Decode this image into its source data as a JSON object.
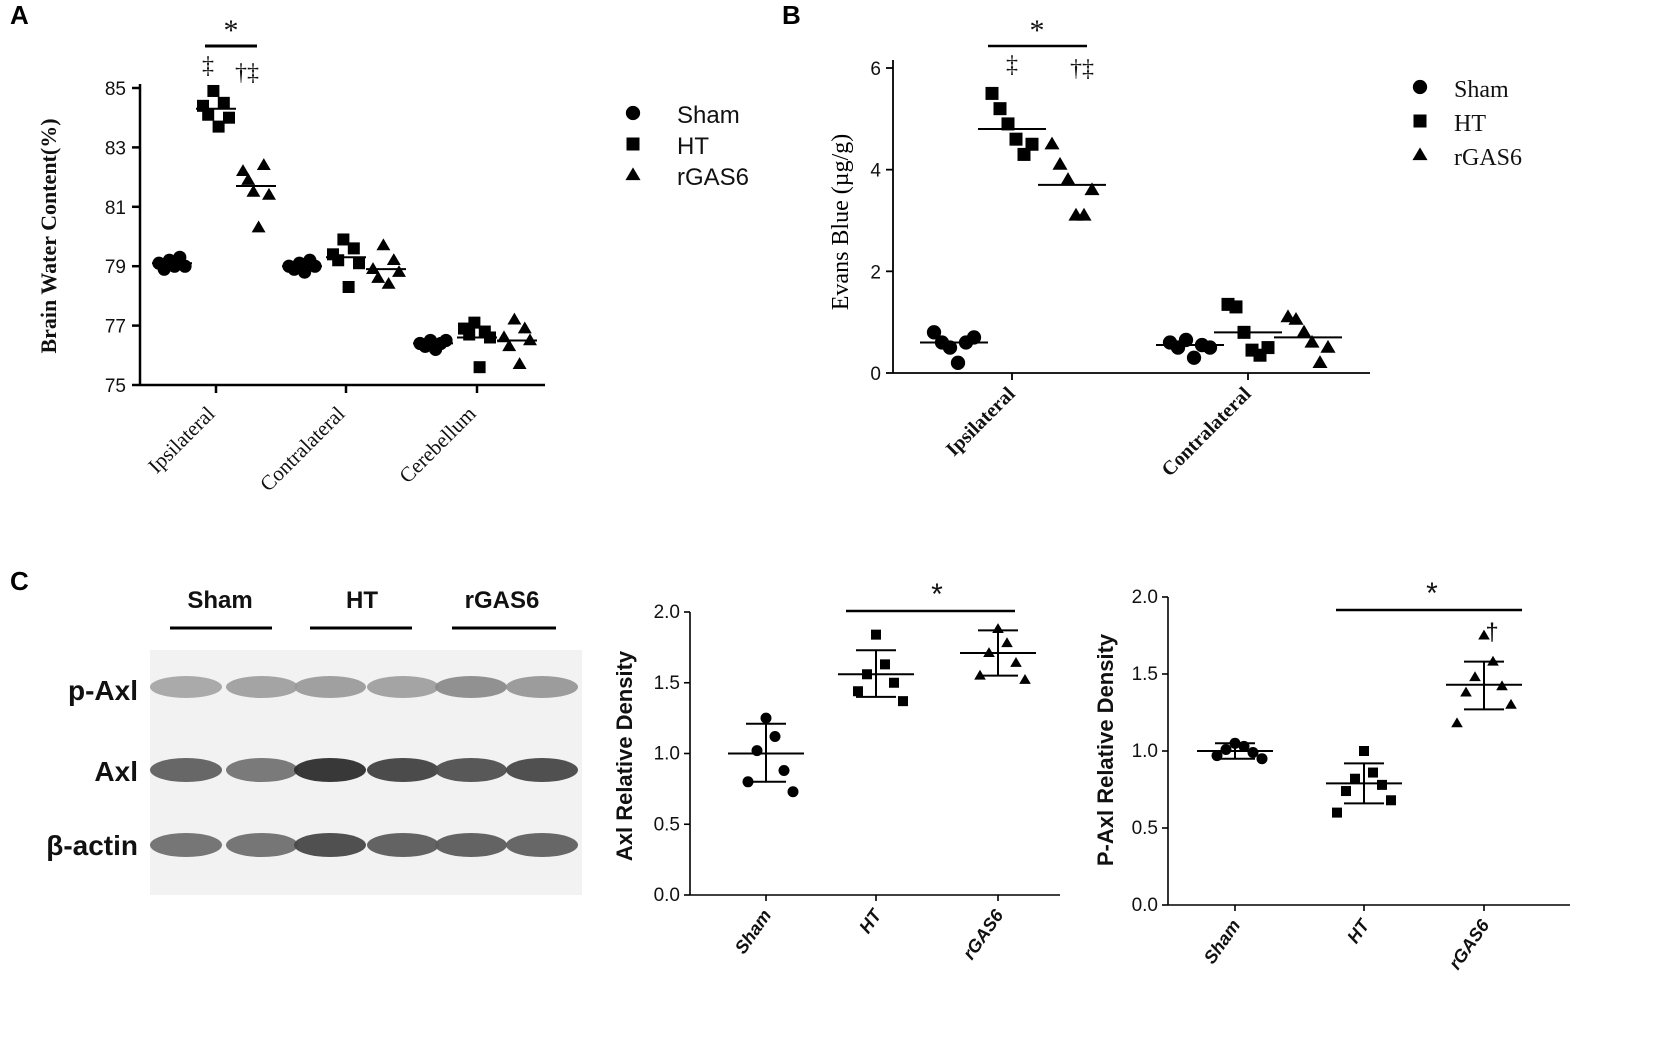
{
  "panels": {
    "a": {
      "letter": "A",
      "legend": [
        {
          "label": "Sham",
          "shape": "circle"
        },
        {
          "label": "HT",
          "shape": "square"
        },
        {
          "label": "rGAS6",
          "shape": "triangle"
        }
      ],
      "significance": {
        "star": "*",
        "ht_symbol": "‡",
        "rgas6_symbol": "†‡"
      }
    },
    "b": {
      "letter": "B",
      "legend": [
        {
          "label": "Sham",
          "shape": "circle"
        },
        {
          "label": "HT",
          "shape": "square"
        },
        {
          "label": "rGAS6",
          "shape": "triangle"
        }
      ],
      "significance": {
        "star": "*",
        "ht_symbol": "‡",
        "rgas6_symbol": "†‡"
      }
    },
    "c": {
      "letter": "C",
      "blot": {
        "groups": [
          "Sham",
          "HT",
          "rGAS6"
        ],
        "rows": [
          "p-Axl",
          "Axl",
          "β-actin"
        ],
        "band_intensity": {
          "p-Axl": [
            0.35,
            0.38,
            0.4,
            0.38,
            0.48,
            0.42
          ],
          "Axl": [
            0.7,
            0.6,
            0.95,
            0.85,
            0.78,
            0.82
          ],
          "β-actin": [
            0.62,
            0.62,
            0.82,
            0.72,
            0.72,
            0.7
          ]
        }
      },
      "axl_significance": {
        "star": "*"
      },
      "paxl_significance": {
        "star": "*",
        "rgas6_symbol": "†"
      }
    }
  },
  "chart_data": [
    {
      "type": "scatter",
      "title": "",
      "xlabel": "",
      "ylabel": "Brain Water Content(%)",
      "ylim": [
        75,
        85
      ],
      "yticks": [
        75,
        77,
        79,
        81,
        83,
        85
      ],
      "categories": [
        "Ipsilateral",
        "Contralateral",
        "Cerebellum"
      ],
      "grid": false,
      "legend_position": "top-right",
      "series": [
        {
          "name": "Sham",
          "values": [
            [
              79.1,
              78.9,
              79.2,
              79.0,
              79.3,
              79.0
            ],
            [
              79.0,
              78.9,
              79.1,
              78.8,
              79.2,
              79.0
            ],
            [
              76.4,
              76.3,
              76.5,
              76.2,
              76.4,
              76.5
            ]
          ],
          "means": [
            79.1,
            79.0,
            76.4
          ]
        },
        {
          "name": "HT",
          "values": [
            [
              84.4,
              84.1,
              84.9,
              83.7,
              84.5,
              84.0
            ],
            [
              79.4,
              79.2,
              79.9,
              78.3,
              79.6,
              79.1
            ],
            [
              76.9,
              76.7,
              77.1,
              75.6,
              76.8,
              76.6
            ]
          ],
          "means": [
            84.3,
            79.3,
            76.6
          ]
        },
        {
          "name": "rGAS6",
          "values": [
            [
              82.2,
              81.9,
              81.5,
              80.3,
              82.4,
              81.4
            ],
            [
              78.9,
              78.6,
              79.7,
              78.4,
              79.2,
              78.8
            ],
            [
              76.6,
              76.3,
              77.2,
              75.7,
              76.9,
              76.5
            ]
          ],
          "means": [
            81.7,
            78.9,
            76.5
          ]
        }
      ],
      "annotations": [
        {
          "between": [
            "HT",
            "rGAS6"
          ],
          "category": "Ipsilateral",
          "text": "*"
        }
      ]
    },
    {
      "type": "scatter",
      "title": "",
      "xlabel": "",
      "ylabel": "Evans Blue (µg/g)",
      "ylim": [
        0,
        6
      ],
      "yticks": [
        0,
        2,
        4,
        6
      ],
      "categories": [
        "Ipsilateral",
        "Contralateral"
      ],
      "grid": false,
      "legend_position": "top-right",
      "series": [
        {
          "name": "Sham",
          "values": [
            [
              0.8,
              0.6,
              0.5,
              0.2,
              0.6,
              0.7
            ],
            [
              0.6,
              0.5,
              0.65,
              0.3,
              0.55,
              0.5
            ]
          ],
          "means": [
            0.6,
            0.55
          ]
        },
        {
          "name": "HT",
          "values": [
            [
              5.5,
              5.2,
              4.9,
              4.6,
              4.3,
              4.5
            ],
            [
              1.35,
              1.3,
              0.8,
              0.45,
              0.35,
              0.5
            ]
          ],
          "means": [
            4.8,
            0.8
          ]
        },
        {
          "name": "rGAS6",
          "values": [
            [
              4.5,
              4.1,
              3.8,
              3.1,
              3.1,
              3.6
            ],
            [
              1.1,
              1.05,
              0.8,
              0.6,
              0.2,
              0.5
            ]
          ],
          "means": [
            3.7,
            0.7
          ]
        }
      ],
      "annotations": [
        {
          "between": [
            "HT",
            "rGAS6"
          ],
          "category": "Ipsilateral",
          "text": "*"
        }
      ]
    },
    {
      "type": "scatter",
      "title": "",
      "xlabel": "",
      "ylabel": "Axl Relative Density",
      "ylim": [
        0.0,
        2.0
      ],
      "yticks": [
        0.0,
        0.5,
        1.0,
        1.5,
        2.0
      ],
      "categories": [
        "Sham",
        "HT",
        "rGAS6"
      ],
      "grid": false,
      "groups": [
        {
          "name": "Sham",
          "values": [
            1.25,
            1.12,
            1.02,
            0.88,
            0.8,
            0.73
          ],
          "mean": 1.0,
          "sd_low": 0.8,
          "sd_high": 1.21
        },
        {
          "name": "HT",
          "values": [
            1.84,
            1.63,
            1.56,
            1.5,
            1.44,
            1.37
          ],
          "mean": 1.56,
          "sd_low": 1.4,
          "sd_high": 1.73
        },
        {
          "name": "rGAS6",
          "values": [
            1.88,
            1.78,
            1.71,
            1.64,
            1.55,
            1.52
          ],
          "mean": 1.71,
          "sd_low": 1.55,
          "sd_high": 1.87
        }
      ],
      "annotations": [
        {
          "between": [
            "HT",
            "rGAS6"
          ],
          "text": "*"
        }
      ]
    },
    {
      "type": "scatter",
      "title": "",
      "xlabel": "",
      "ylabel": "P-Axl Relative Density",
      "ylim": [
        0.0,
        2.0
      ],
      "yticks": [
        0.0,
        0.5,
        1.0,
        1.5,
        2.0
      ],
      "categories": [
        "Sham",
        "HT",
        "rGAS6"
      ],
      "grid": false,
      "groups": [
        {
          "name": "Sham",
          "values": [
            1.05,
            1.03,
            1.01,
            0.99,
            0.97,
            0.95
          ],
          "mean": 1.0,
          "sd_low": 0.95,
          "sd_high": 1.05
        },
        {
          "name": "HT",
          "values": [
            1.0,
            0.86,
            0.82,
            0.78,
            0.74,
            0.68,
            0.6
          ],
          "mean": 0.79,
          "sd_low": 0.66,
          "sd_high": 0.92
        },
        {
          "name": "rGAS6",
          "values": [
            1.75,
            1.58,
            1.48,
            1.42,
            1.38,
            1.3,
            1.18
          ],
          "mean": 1.43,
          "sd_low": 1.27,
          "sd_high": 1.58
        }
      ],
      "annotations": [
        {
          "between": [
            "HT",
            "rGAS6"
          ],
          "text": "*"
        },
        {
          "group": "rGAS6",
          "text": "†"
        }
      ]
    }
  ]
}
